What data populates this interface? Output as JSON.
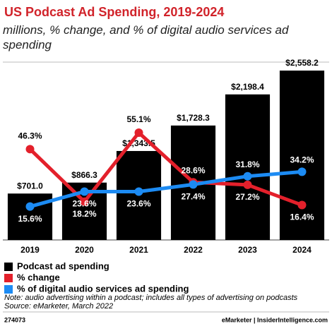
{
  "chart_data": {
    "type": "bar",
    "title": "US Podcast Ad Spending, 2019-2024",
    "subtitle": "millions, % change, and % of digital audio services ad spending",
    "categories": [
      "2019",
      "2020",
      "2021",
      "2022",
      "2023",
      "2024"
    ],
    "series": [
      {
        "name": "Podcast ad spending",
        "type": "bar",
        "color": "#000000",
        "values": [
          701.0,
          866.3,
          1343.5,
          1728.3,
          2198.4,
          2558.2
        ],
        "value_labels": [
          "$701.0",
          "$866.3",
          "$1,343.5",
          "$1,728.3",
          "$2,198.4",
          "$2,558.2"
        ]
      },
      {
        "name": "% change",
        "type": "line",
        "color": "#e3202b",
        "values": [
          46.3,
          18.2,
          55.1,
          28.6,
          27.2,
          16.4
        ],
        "value_labels": [
          "46.3%",
          "18.2%",
          "55.1%",
          "28.6%",
          "27.2%",
          "16.4%"
        ]
      },
      {
        "name": "% of digital audio services ad spending",
        "type": "line",
        "color": "#1c8bf3",
        "values": [
          15.6,
          23.6,
          23.6,
          27.4,
          31.8,
          34.2
        ],
        "value_labels": [
          "15.6%",
          "23.6%",
          "23.6%",
          "27.4%",
          "31.8%",
          "34.2%"
        ]
      }
    ],
    "note": "Note: audio advertising within a podcast; includes all types of advertising on podcasts",
    "source": "Source: eMarketer, March 2022",
    "chart_id": "274073",
    "brand": "eMarketer | InsiderIntelligence.com"
  }
}
